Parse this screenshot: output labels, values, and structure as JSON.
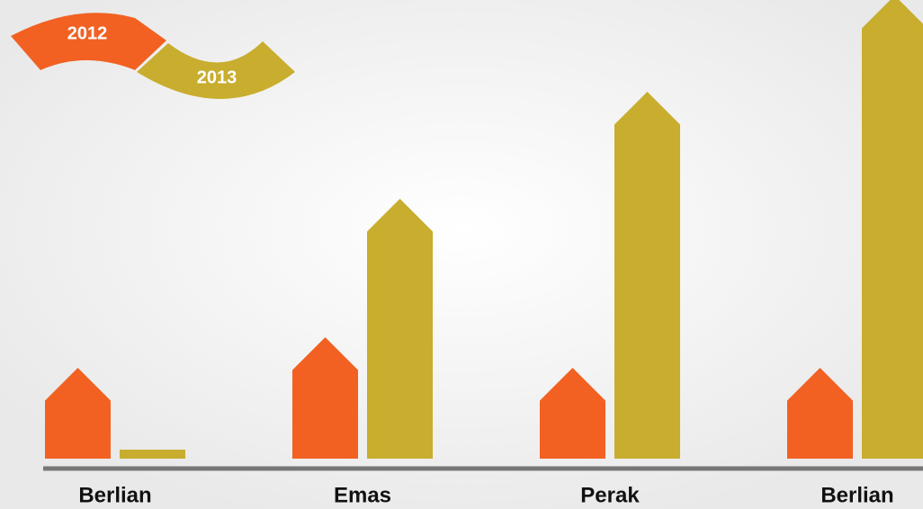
{
  "chart_data": {
    "type": "bar",
    "categories": [
      "Berlian",
      "Emas",
      "Perak",
      "Berlian"
    ],
    "series": [
      {
        "name": "2012",
        "color": "#f26122",
        "values": [
          101,
          135,
          101,
          101
        ]
      },
      {
        "name": "2013",
        "color": "#c8ad2e",
        "values": [
          10,
          289,
          408,
          515
        ]
      }
    ],
    "ylim": [
      0,
      510
    ]
  }
}
